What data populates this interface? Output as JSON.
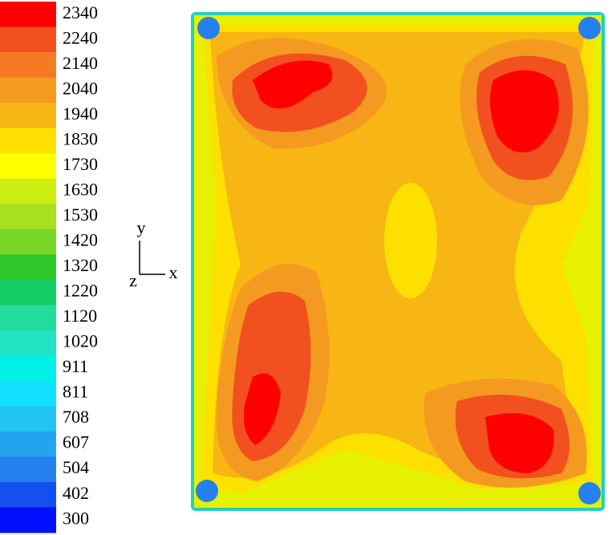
{
  "colorbar": {
    "levels": [
      "2340",
      "2240",
      "2140",
      "2040",
      "1940",
      "1830",
      "1730",
      "1630",
      "1530",
      "1420",
      "1320",
      "1220",
      "1120",
      "1020",
      "911",
      "811",
      "708",
      "607",
      "504",
      "402",
      "300"
    ],
    "colors": [
      "#ff0000",
      "#f2501e",
      "#f57a22",
      "#f59a20",
      "#f7b614",
      "#fde000",
      "#ffff00",
      "#cdee10",
      "#a6e01e",
      "#78d628",
      "#2ec82a",
      "#14d064",
      "#22dc9c",
      "#22e2c4",
      "#00f0e6",
      "#12e0ff",
      "#22c4f2",
      "#22a4f0",
      "#2680ee",
      "#1450f0",
      "#0010ff"
    ]
  },
  "triad": {
    "y": "y",
    "x": "x",
    "z": "z"
  }
}
